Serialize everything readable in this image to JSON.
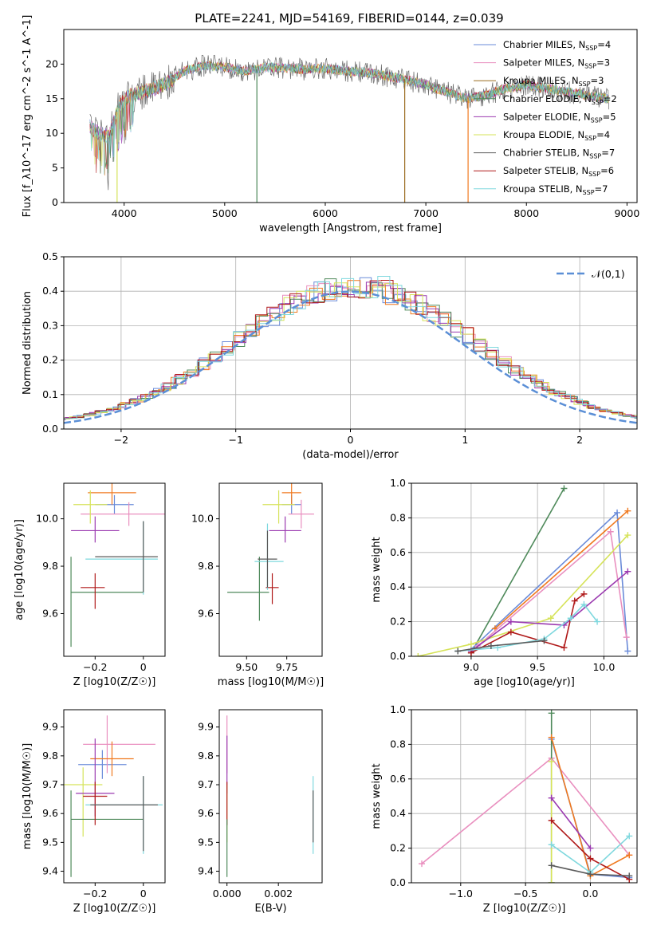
{
  "figure": {
    "title": "PLATE=2241, MJD=54169, FIBERID=0144, z=0.039"
  },
  "colors": {
    "Chabrier MILES": "#6a8bd9",
    "Salpeter MILES": "#e98fbf",
    "Kroupa MILES": "#9a6b1f",
    "Chabrier ELODIE": "#4f8a5b",
    "Salpeter ELODIE": "#9b3ab0",
    "Kroupa ELODIE": "#d6e35a",
    "Chabrier STELIB": "#5a5a5a",
    "Salpeter STELIB": "#b01a1a",
    "Kroupa STELIB": "#7fd8de",
    "orange": "#f07a20",
    "normal": "#5b8fd6"
  },
  "chart_data": [
    {
      "id": "spectrum",
      "type": "line",
      "xlabel": "wavelength [Angstrom, rest frame]",
      "ylabel": "Flux [f_λ10^-17 erg cm^-2 s^-1 A^-1]",
      "xlim": [
        3400,
        9100
      ],
      "ylim": [
        0,
        25
      ],
      "xticks": [
        4000,
        5000,
        6000,
        7000,
        8000,
        9000
      ],
      "yticks": [
        0,
        5,
        10,
        15,
        20
      ],
      "legend_position": "upper right",
      "series": [
        {
          "name": "Chabrier MILES, N_SSP=4"
        },
        {
          "name": "Salpeter MILES, N_SSP=3"
        },
        {
          "name": "Kroupa MILES, N_SSP=3"
        },
        {
          "name": "Chabrier ELODIE, N_SSP=2"
        },
        {
          "name": "Salpeter ELODIE, N_SSP=5"
        },
        {
          "name": "Kroupa ELODIE, N_SSP=4"
        },
        {
          "name": "Chabrier STELIB, N_SSP=7"
        },
        {
          "name": "Salpeter STELIB, N_SSP=6"
        },
        {
          "name": "Kroupa STELIB, N_SSP=7"
        }
      ],
      "continuum": [
        [
          3650,
          11
        ],
        [
          3750,
          10
        ],
        [
          3850,
          9.5
        ],
        [
          3950,
          14
        ],
        [
          4050,
          15.5
        ],
        [
          4200,
          16
        ],
        [
          4400,
          17
        ],
        [
          4600,
          19
        ],
        [
          4800,
          19.8
        ],
        [
          5000,
          19.6
        ],
        [
          5200,
          19
        ],
        [
          5400,
          19.5
        ],
        [
          5600,
          19.5
        ],
        [
          5800,
          19.2
        ],
        [
          6000,
          19.4
        ],
        [
          6200,
          19
        ],
        [
          6400,
          18.8
        ],
        [
          6600,
          18.3
        ],
        [
          6800,
          17.8
        ],
        [
          7000,
          17
        ],
        [
          7200,
          16
        ],
        [
          7400,
          15
        ],
        [
          7600,
          15.5
        ],
        [
          7800,
          16.5
        ],
        [
          8000,
          17
        ],
        [
          8200,
          16.5
        ],
        [
          8400,
          16
        ],
        [
          8600,
          15.5
        ],
        [
          8800,
          15
        ]
      ],
      "drop_lines": [
        [
          5320,
          "Chabrier ELODIE"
        ],
        [
          6790,
          "Kroupa MILES"
        ],
        [
          7420,
          "orange"
        ],
        [
          3930,
          "Kroupa ELODIE"
        ]
      ]
    },
    {
      "id": "residuals",
      "type": "step",
      "xlabel": "(data-model)/error",
      "ylabel": "Normed distribution",
      "xlim": [
        -2.5,
        2.5
      ],
      "ylim": [
        0,
        0.5
      ],
      "xticks": [
        -2,
        -1,
        0,
        1,
        2
      ],
      "yticks": [
        0.0,
        0.1,
        0.2,
        0.3,
        0.4,
        0.5
      ],
      "grid": true,
      "legend": "𝒩(0,1)",
      "legend_position": "upper right",
      "series_names": [
        "Chabrier MILES",
        "Salpeter MILES",
        "orange",
        "Chabrier ELODIE",
        "Salpeter ELODIE",
        "Kroupa ELODIE",
        "Salpeter STELIB",
        "Kroupa STELIB"
      ]
    },
    {
      "id": "age_vs_Z",
      "type": "scatter-errorbar",
      "xlabel": "Z [log10(Z/Z☉)]",
      "ylabel": "age  [log10(age/yr)]",
      "xlim": [
        -0.33,
        0.09
      ],
      "ylim": [
        9.42,
        10.15
      ],
      "xticks": [
        -0.2,
        0.0
      ],
      "yticks": [
        9.6,
        9.8,
        10.0
      ],
      "points": [
        {
          "c": "Chabrier MILES",
          "x": -0.12,
          "y": 10.06,
          "xerr": [
            0.08,
            0.08
          ],
          "yerr": [
            0.04,
            0.04
          ]
        },
        {
          "c": "Salpeter MILES",
          "x": -0.06,
          "y": 10.02,
          "xerr": [
            0.2,
            0.2
          ],
          "yerr": [
            0.05,
            0.05
          ]
        },
        {
          "c": "orange",
          "x": -0.13,
          "y": 10.11,
          "xerr": [
            0.1,
            0.1
          ],
          "yerr": [
            0.05,
            0.05
          ]
        },
        {
          "c": "Kroupa ELODIE",
          "x": -0.22,
          "y": 10.06,
          "xerr": [
            0.07,
            0.07
          ],
          "yerr": [
            0.08,
            0.06
          ]
        },
        {
          "c": "Salpeter ELODIE",
          "x": -0.2,
          "y": 9.95,
          "xerr": [
            0.1,
            0.1
          ],
          "yerr": [
            0.05,
            0.06
          ]
        },
        {
          "c": "Chabrier ELODIE",
          "x": -0.3,
          "y": 9.69,
          "xerr": [
            0.0,
            0.3
          ],
          "yerr": [
            0.23,
            0.15
          ]
        },
        {
          "c": "Salpeter STELIB",
          "x": -0.2,
          "y": 9.71,
          "xerr": [
            0.06,
            0.04
          ],
          "yerr": [
            0.09,
            0.06
          ]
        },
        {
          "c": "Kroupa STELIB",
          "x": 0.0,
          "y": 9.83,
          "xerr": [
            0.24,
            0.06
          ],
          "yerr": [
            0.15,
            0.16
          ]
        },
        {
          "c": "Chabrier STELIB",
          "x": 0.0,
          "y": 9.84,
          "xerr": [
            0.2,
            0.06
          ],
          "yerr": [
            0.15,
            0.15
          ]
        }
      ]
    },
    {
      "id": "age_vs_mass",
      "type": "scatter-errorbar",
      "xlabel": "mass [log10(M/M☉)]",
      "ylabel": "",
      "xlim": [
        9.33,
        9.97
      ],
      "ylim": [
        9.42,
        10.15
      ],
      "xticks": [
        9.5,
        9.75
      ],
      "xticklabels": [
        "9.50",
        "9.75"
      ],
      "yticks": [
        9.6,
        9.8,
        10.0
      ],
      "points": [
        {
          "c": "Chabrier MILES",
          "x": 9.78,
          "y": 10.06,
          "xerr": [
            0.06,
            0.06
          ],
          "yerr": [
            0.04,
            0.04
          ]
        },
        {
          "c": "Salpeter MILES",
          "x": 9.84,
          "y": 10.02,
          "xerr": [
            0.08,
            0.08
          ],
          "yerr": [
            0.06,
            0.06
          ]
        },
        {
          "c": "orange",
          "x": 9.78,
          "y": 10.11,
          "xerr": [
            0.06,
            0.06
          ],
          "yerr": [
            0.05,
            0.05
          ]
        },
        {
          "c": "Kroupa ELODIE",
          "x": 9.7,
          "y": 10.06,
          "xerr": [
            0.1,
            0.1
          ],
          "yerr": [
            0.08,
            0.06
          ]
        },
        {
          "c": "Salpeter ELODIE",
          "x": 9.74,
          "y": 9.95,
          "xerr": [
            0.1,
            0.1
          ],
          "yerr": [
            0.05,
            0.06
          ]
        },
        {
          "c": "Chabrier ELODIE",
          "x": 9.58,
          "y": 9.69,
          "xerr": [
            0.2,
            0.06
          ],
          "yerr": [
            0.12,
            0.15
          ]
        },
        {
          "c": "Salpeter STELIB",
          "x": 9.66,
          "y": 9.71,
          "xerr": [
            0.04,
            0.04
          ],
          "yerr": [
            0.07,
            0.06
          ]
        },
        {
          "c": "Kroupa STELIB",
          "x": 9.63,
          "y": 9.82,
          "xerr": [
            0.08,
            0.1
          ],
          "yerr": [
            0.12,
            0.16
          ]
        },
        {
          "c": "Chabrier STELIB",
          "x": 9.63,
          "y": 9.83,
          "xerr": [
            0.06,
            0.06
          ],
          "yerr": [
            0.12,
            0.12
          ]
        }
      ]
    },
    {
      "id": "mw_vs_age",
      "type": "line",
      "xlabel": "age  [log10(age/yr)]",
      "ylabel": "mass weight",
      "xlim": [
        8.55,
        10.25
      ],
      "ylim": [
        0,
        1
      ],
      "xticks": [
        9.0,
        9.5,
        10.0
      ],
      "xticklabels": [
        "9.0",
        "9.5",
        "10.0"
      ],
      "yticks": [
        0,
        0.2,
        0.4,
        0.6,
        0.8,
        1.0
      ],
      "grid": true,
      "series": [
        {
          "c": "Chabrier ELODIE",
          "x": [
            9.0,
            9.7
          ],
          "y": [
            0.02,
            0.97
          ]
        },
        {
          "c": "Chabrier MILES",
          "x": [
            9.0,
            10.1,
            10.18
          ],
          "y": [
            0.04,
            0.83,
            0.03
          ]
        },
        {
          "c": "orange",
          "x": [
            9.18,
            10.18
          ],
          "y": [
            0.16,
            0.84
          ]
        },
        {
          "c": "Salpeter MILES",
          "x": [
            9.05,
            10.05,
            10.17
          ],
          "y": [
            0.06,
            0.72,
            0.11
          ]
        },
        {
          "c": "Kroupa ELODIE",
          "x": [
            8.6,
            9.0,
            9.6,
            10.18
          ],
          "y": [
            0.0,
            0.07,
            0.22,
            0.7
          ]
        },
        {
          "c": "Salpeter ELODIE",
          "x": [
            9.0,
            9.3,
            9.7,
            10.18
          ],
          "y": [
            0.03,
            0.2,
            0.18,
            0.49
          ]
        },
        {
          "c": "Salpeter STELIB",
          "x": [
            9.0,
            9.3,
            9.7,
            9.78,
            9.85
          ],
          "y": [
            0.02,
            0.14,
            0.05,
            0.32,
            0.36
          ]
        },
        {
          "c": "Kroupa STELIB",
          "x": [
            8.9,
            9.2,
            9.55,
            9.75,
            9.85,
            9.95
          ],
          "y": [
            0.03,
            0.05,
            0.1,
            0.22,
            0.3,
            0.2
          ]
        },
        {
          "c": "Chabrier STELIB",
          "x": [
            8.9,
            9.15,
            9.55
          ],
          "y": [
            0.03,
            0.06,
            0.09
          ]
        }
      ]
    },
    {
      "id": "mass_vs_Z",
      "type": "scatter-errorbar",
      "xlabel": "Z [log10(Z/Z☉)]",
      "ylabel": "mass [log10(M/M☉)]",
      "xlim": [
        -0.33,
        0.09
      ],
      "ylim": [
        9.36,
        9.96
      ],
      "xticks": [
        -0.2,
        0.0
      ],
      "yticks": [
        9.4,
        9.5,
        9.6,
        9.7,
        9.8,
        9.9
      ],
      "points": [
        {
          "c": "Chabrier MILES",
          "x": -0.17,
          "y": 9.77,
          "xerr": [
            0.1,
            0.1
          ],
          "yerr": [
            0.05,
            0.05
          ]
        },
        {
          "c": "Salpeter MILES",
          "x": -0.15,
          "y": 9.84,
          "xerr": [
            0.1,
            0.2
          ],
          "yerr": [
            0.1,
            0.1
          ]
        },
        {
          "c": "orange",
          "x": -0.13,
          "y": 9.79,
          "xerr": [
            0.09,
            0.09
          ],
          "yerr": [
            0.06,
            0.06
          ]
        },
        {
          "c": "Kroupa ELODIE",
          "x": -0.25,
          "y": 9.7,
          "xerr": [
            0.08,
            0.08
          ],
          "yerr": [
            0.18,
            0.06
          ]
        },
        {
          "c": "Salpeter ELODIE",
          "x": -0.2,
          "y": 9.67,
          "xerr": [
            0.08,
            0.08
          ],
          "yerr": [
            0.08,
            0.19
          ]
        },
        {
          "c": "Chabrier ELODIE",
          "x": -0.3,
          "y": 9.58,
          "xerr": [
            0.0,
            0.3
          ],
          "yerr": [
            0.2,
            0.1
          ]
        },
        {
          "c": "Salpeter STELIB",
          "x": -0.2,
          "y": 9.66,
          "xerr": [
            0.05,
            0.05
          ],
          "yerr": [
            0.1,
            0.05
          ]
        },
        {
          "c": "Kroupa STELIB",
          "x": 0.0,
          "y": 9.63,
          "xerr": [
            0.24,
            0.08
          ],
          "yerr": [
            0.17,
            0.1
          ]
        },
        {
          "c": "Chabrier STELIB",
          "x": 0.0,
          "y": 9.63,
          "xerr": [
            0.22,
            0.06
          ],
          "yerr": [
            0.16,
            0.1
          ]
        }
      ]
    },
    {
      "id": "mass_vs_EBV",
      "type": "scatter-errorbar",
      "xlabel": "E(B-V)",
      "ylabel": "",
      "xlim": [
        -0.0003,
        0.0037
      ],
      "ylim": [
        9.36,
        9.96
      ],
      "xticks": [
        0.0,
        0.002
      ],
      "xticklabels": [
        "0.000",
        "0.002"
      ],
      "yticks": [
        9.4,
        9.5,
        9.6,
        9.7,
        9.8,
        9.9
      ],
      "points": [
        {
          "c": "Salpeter MILES",
          "x": 0.0,
          "y": 9.84,
          "xerr": [
            0,
            0
          ],
          "yerr": [
            0.1,
            0.1
          ]
        },
        {
          "c": "Salpeter ELODIE",
          "x": 0.0,
          "y": 9.77,
          "xerr": [
            0,
            0
          ],
          "yerr": [
            0.1,
            0.1
          ]
        },
        {
          "c": "Kroupa ELODIE",
          "x": 0.0,
          "y": 9.6,
          "xerr": [
            0,
            0
          ],
          "yerr": [
            0.1,
            0.1
          ]
        },
        {
          "c": "Salpeter STELIB",
          "x": 0.0,
          "y": 9.66,
          "xerr": [
            0,
            0
          ],
          "yerr": [
            0.1,
            0.05
          ]
        },
        {
          "c": "Chabrier ELODIE",
          "x": 0.0,
          "y": 9.5,
          "xerr": [
            0,
            0
          ],
          "yerr": [
            0.12,
            0.08
          ]
        },
        {
          "c": "Kroupa STELIB",
          "x": 0.00335,
          "y": 9.63,
          "xerr": [
            0,
            0
          ],
          "yerr": [
            0.17,
            0.1
          ]
        },
        {
          "c": "Chabrier STELIB",
          "x": 0.00335,
          "y": 9.6,
          "xerr": [
            0,
            0
          ],
          "yerr": [
            0.1,
            0.08
          ]
        }
      ]
    },
    {
      "id": "mw_vs_Z",
      "type": "line",
      "xlabel": "Z [log10(Z/Z☉)]",
      "ylabel": "mass weight",
      "xlim": [
        -1.38,
        0.36
      ],
      "ylim": [
        0,
        1
      ],
      "xticks": [
        -1.0,
        -0.5,
        0.0
      ],
      "xticklabels": [
        "−1.0",
        "−0.5",
        "0.0"
      ],
      "yticks": [
        0,
        0.2,
        0.4,
        0.6,
        0.8,
        1.0
      ],
      "grid": true,
      "series": [
        {
          "c": "Salpeter MILES",
          "x": [
            -1.3,
            -0.3,
            0.3
          ],
          "y": [
            0.11,
            0.72,
            0.16
          ]
        },
        {
          "c": "Chabrier MILES",
          "x": [
            -0.3,
            0.0,
            0.3
          ],
          "y": [
            0.83,
            0.05,
            0.03
          ]
        },
        {
          "c": "Chabrier ELODIE",
          "x": [
            -0.3,
            -0.3
          ],
          "y": [
            0.0,
            0.98
          ]
        },
        {
          "c": "orange",
          "x": [
            -0.3,
            0.0,
            0.3
          ],
          "y": [
            0.84,
            0.04,
            0.16
          ]
        },
        {
          "c": "Kroupa ELODIE",
          "x": [
            -0.3,
            -0.3
          ],
          "y": [
            0.0,
            0.7
          ]
        },
        {
          "c": "Salpeter ELODIE",
          "x": [
            -0.3,
            0.0
          ],
          "y": [
            0.49,
            0.2
          ]
        },
        {
          "c": "Salpeter STELIB",
          "x": [
            -0.3,
            0.0,
            0.3
          ],
          "y": [
            0.36,
            0.14,
            0.02
          ]
        },
        {
          "c": "Kroupa STELIB",
          "x": [
            -0.3,
            0.0,
            0.3
          ],
          "y": [
            0.22,
            0.06,
            0.27
          ]
        },
        {
          "c": "Chabrier STELIB",
          "x": [
            -0.3,
            0.0,
            0.3
          ],
          "y": [
            0.1,
            0.05,
            0.04
          ]
        }
      ]
    }
  ]
}
